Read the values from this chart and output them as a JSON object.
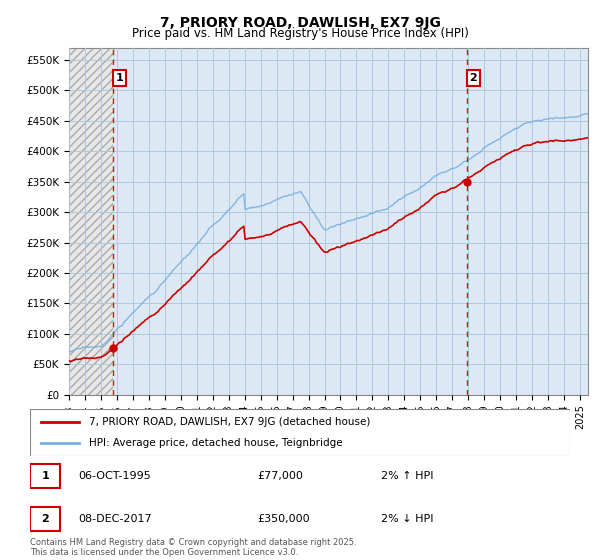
{
  "title": "7, PRIORY ROAD, DAWLISH, EX7 9JG",
  "subtitle": "Price paid vs. HM Land Registry's House Price Index (HPI)",
  "legend_line1": "7, PRIORY ROAD, DAWLISH, EX7 9JG (detached house)",
  "legend_line2": "HPI: Average price, detached house, Teignbridge",
  "annotation1_date": "06-OCT-1995",
  "annotation1_price": "£77,000",
  "annotation1_hpi": "2% ↑ HPI",
  "annotation1_year": 1995.77,
  "annotation1_value": 77000,
  "annotation2_date": "08-DEC-2017",
  "annotation2_price": "£350,000",
  "annotation2_hpi": "2% ↓ HPI",
  "annotation2_year": 2017.93,
  "annotation2_value": 350000,
  "xmin": 1993.0,
  "xmax": 2025.5,
  "ymin": 0,
  "ymax": 570000,
  "yticks": [
    0,
    50000,
    100000,
    150000,
    200000,
    250000,
    300000,
    350000,
    400000,
    450000,
    500000,
    550000
  ],
  "plot_bg_color": "#dce9f5",
  "hatch_bg_color": "#f0f0f0",
  "grid_color": "#b0c8e0",
  "red_line_color": "#cc0000",
  "blue_line_color": "#7aafdf",
  "dashed_line_color": "#cc0000",
  "annotation_box_color": "#cc0000",
  "footnote": "Contains HM Land Registry data © Crown copyright and database right 2025.\nThis data is licensed under the Open Government Licence v3.0."
}
